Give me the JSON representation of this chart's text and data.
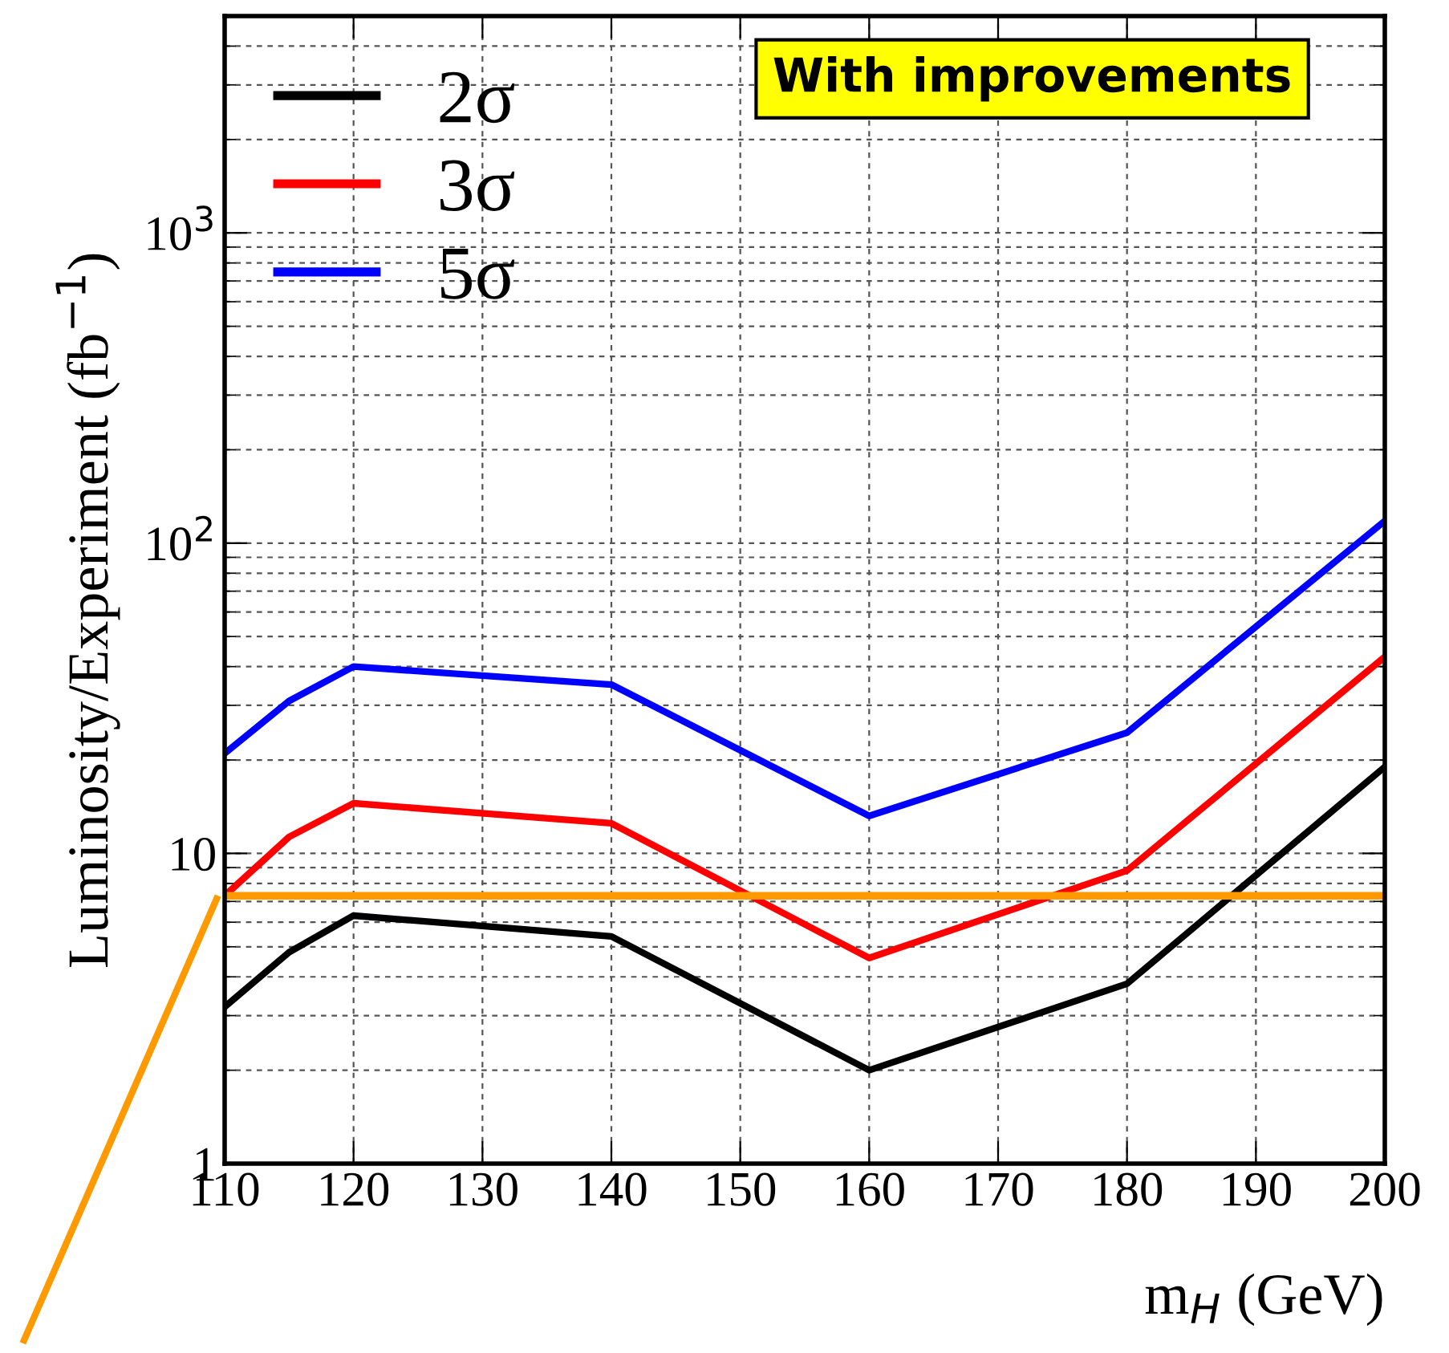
{
  "chart_data": {
    "type": "line",
    "xlabel": "m$_{H}$ (GeV)",
    "ylabel": "Luminosity/Experiment (fb$^{−1}$)",
    "x": [
      110,
      115,
      120,
      140,
      160,
      180,
      200
    ],
    "series": [
      {
        "name": "2σ",
        "color": "#000000",
        "values": [
          3.2,
          4.8,
          6.3,
          5.4,
          2.0,
          3.8,
          19
        ]
      },
      {
        "name": "3σ",
        "color": "#ff0000",
        "values": [
          7.3,
          11.3,
          14.5,
          12.5,
          4.6,
          8.8,
          43
        ]
      },
      {
        "name": "5σ",
        "color": "#0000ff",
        "values": [
          21,
          31,
          40,
          35,
          13.2,
          24.5,
          118
        ]
      }
    ],
    "xlim": [
      110,
      200
    ],
    "xticks": [
      110,
      120,
      130,
      140,
      150,
      160,
      170,
      180,
      190,
      200
    ],
    "ylim": [
      1,
      5000
    ],
    "yticks": [
      1,
      10,
      {
        "value": 100,
        "label": "10$^{2}$"
      },
      {
        "value": 1000,
        "label": "10$^{3}$"
      }
    ],
    "log": "y",
    "grid": true,
    "legend": "top left",
    "marker": "none",
    "line_style": "solid",
    "ref_lines": [
      {
        "axis": "y",
        "value": 7.3,
        "color": "#ff9900"
      }
    ],
    "annotations": [
      "With improvements"
    ]
  }
}
